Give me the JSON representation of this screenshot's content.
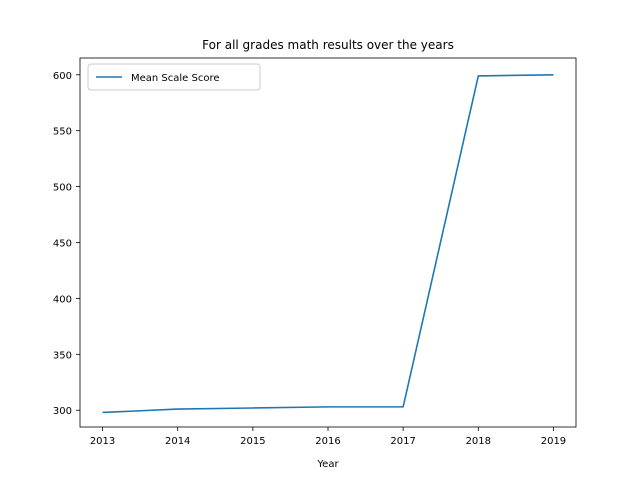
{
  "chart_data": {
    "type": "line",
    "title": "For all grades math results over the years",
    "xlabel": "Year",
    "ylabel": "",
    "x": [
      2013,
      2014,
      2015,
      2016,
      2017,
      2018,
      2019
    ],
    "series": [
      {
        "name": "Mean Scale Score",
        "values": [
          298,
          301,
          302,
          303,
          303,
          599,
          600
        ],
        "color": "#1f77b4"
      }
    ],
    "xticks": [
      "2013",
      "2014",
      "2015",
      "2016",
      "2017",
      "2018",
      "2019"
    ],
    "yticks": [
      300,
      350,
      400,
      450,
      500,
      550,
      600
    ],
    "xlim": [
      2012.7,
      2019.3
    ],
    "ylim": [
      285,
      615
    ],
    "grid": false,
    "legend_position": "upper-left"
  }
}
